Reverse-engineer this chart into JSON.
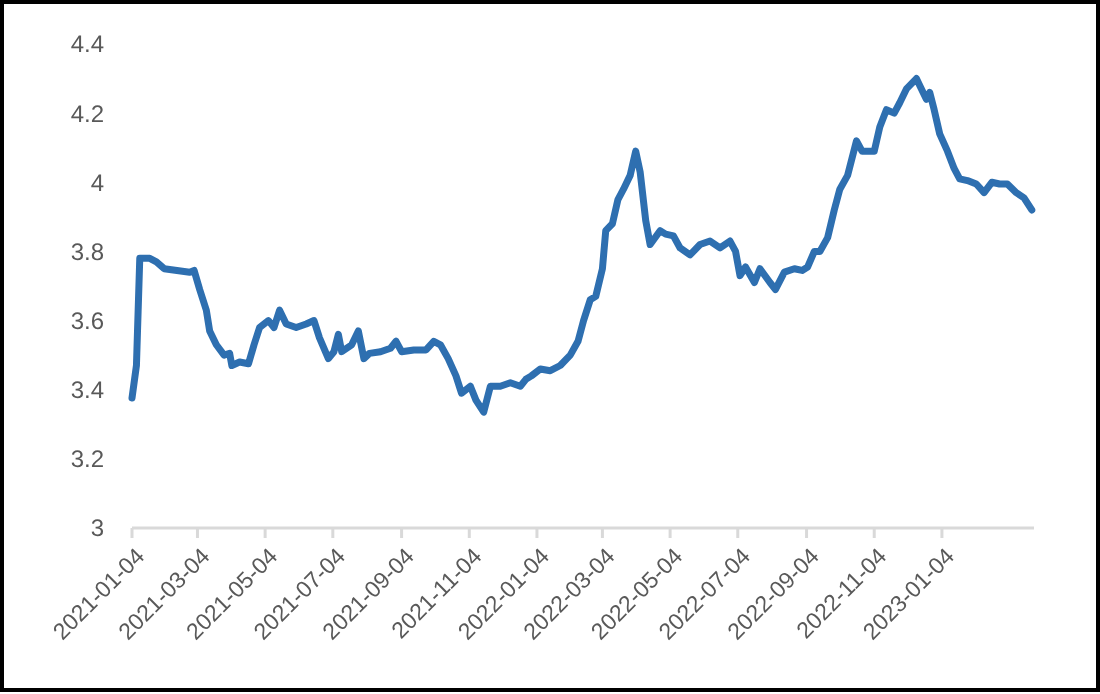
{
  "chart_data": {
    "type": "line",
    "x": [
      "2021-01-04",
      "2021-01-08",
      "2021-01-11",
      "2021-01-20",
      "2021-01-26",
      "2021-02-02",
      "2021-02-25",
      "2021-03-01",
      "2021-03-06",
      "2021-03-12",
      "2021-03-15",
      "2021-03-21",
      "2021-03-28",
      "2021-04-02",
      "2021-04-04",
      "2021-04-11",
      "2021-04-19",
      "2021-04-24",
      "2021-04-29",
      "2021-05-07",
      "2021-05-12",
      "2021-05-17",
      "2021-05-23",
      "2021-06-01",
      "2021-06-10",
      "2021-06-17",
      "2021-06-22",
      "2021-06-30",
      "2021-07-05",
      "2021-07-09",
      "2021-07-12",
      "2021-07-21",
      "2021-07-27",
      "2021-08-01",
      "2021-08-06",
      "2021-08-16",
      "2021-08-25",
      "2021-08-30",
      "2021-09-04",
      "2021-09-15",
      "2021-09-26",
      "2021-10-03",
      "2021-10-09",
      "2021-10-16",
      "2021-10-23",
      "2021-10-28",
      "2021-11-05",
      "2021-11-10",
      "2021-11-17",
      "2021-11-23",
      "2021-12-02",
      "2021-12-11",
      "2021-12-20",
      "2021-12-25",
      "2021-12-30",
      "2022-01-07",
      "2022-01-16",
      "2022-01-25",
      "2022-02-03",
      "2022-02-10",
      "2022-02-15",
      "2022-02-21",
      "2022-02-26",
      "2022-03-04",
      "2022-03-07",
      "2022-03-13",
      "2022-03-18",
      "2022-03-23",
      "2022-03-29",
      "2022-04-03",
      "2022-04-07",
      "2022-04-12",
      "2022-04-16",
      "2022-04-25",
      "2022-04-30",
      "2022-05-07",
      "2022-05-13",
      "2022-05-22",
      "2022-05-31",
      "2022-06-09",
      "2022-06-18",
      "2022-06-27",
      "2022-07-02",
      "2022-07-06",
      "2022-07-11",
      "2022-07-19",
      "2022-07-24",
      "2022-08-02",
      "2022-08-07",
      "2022-08-15",
      "2022-08-24",
      "2022-08-31",
      "2022-09-05",
      "2022-09-11",
      "2022-09-16",
      "2022-09-23",
      "2022-09-29",
      "2022-10-04",
      "2022-10-11",
      "2022-10-19",
      "2022-10-24",
      "2022-11-04",
      "2022-11-09",
      "2022-11-15",
      "2022-11-22",
      "2022-11-27",
      "2022-12-03",
      "2022-12-12",
      "2022-12-15",
      "2022-12-21",
      "2022-12-24",
      "2022-12-28",
      "2023-01-02",
      "2023-01-09",
      "2023-01-15",
      "2023-01-20",
      "2023-01-27",
      "2023-02-04",
      "2023-02-11",
      "2023-02-18",
      "2023-02-25",
      "2023-03-04",
      "2023-03-12",
      "2023-03-19",
      "2023-03-26"
    ],
    "series": [
      {
        "color": "#2e6fb0",
        "values": [
          3.376,
          3.47,
          3.78,
          3.78,
          3.77,
          3.75,
          3.74,
          3.745,
          3.69,
          3.63,
          3.57,
          3.53,
          3.5,
          3.505,
          3.47,
          3.48,
          3.475,
          3.53,
          3.58,
          3.6,
          3.58,
          3.63,
          3.59,
          3.58,
          3.59,
          3.6,
          3.55,
          3.49,
          3.51,
          3.56,
          3.51,
          3.53,
          3.57,
          3.49,
          3.505,
          3.51,
          3.52,
          3.54,
          3.51,
          3.515,
          3.515,
          3.54,
          3.53,
          3.49,
          3.44,
          3.39,
          3.41,
          3.37,
          3.335,
          3.41,
          3.41,
          3.42,
          3.41,
          3.43,
          3.44,
          3.46,
          3.455,
          3.47,
          3.5,
          3.54,
          3.6,
          3.66,
          3.67,
          3.75,
          3.86,
          3.88,
          3.95,
          3.98,
          4.02,
          4.09,
          4.03,
          3.89,
          3.82,
          3.86,
          3.85,
          3.845,
          3.81,
          3.79,
          3.82,
          3.83,
          3.81,
          3.83,
          3.8,
          3.73,
          3.755,
          3.71,
          3.75,
          3.71,
          3.69,
          3.74,
          3.75,
          3.745,
          3.755,
          3.8,
          3.8,
          3.84,
          3.92,
          3.98,
          4.02,
          4.12,
          4.09,
          4.09,
          4.16,
          4.21,
          4.2,
          4.23,
          4.27,
          4.3,
          4.28,
          4.24,
          4.26,
          4.21,
          4.14,
          4.09,
          4.04,
          4.01,
          4.005,
          3.995,
          3.97,
          4,
          3.995,
          3.995,
          3.97,
          3.955,
          3.92
        ]
      }
    ],
    "xlim": [
      "2021-01-04",
      "2023-03-28"
    ],
    "xticks": [
      "2021-01-04",
      "2021-03-04",
      "2021-05-04",
      "2021-07-04",
      "2021-09-04",
      "2021-11-04",
      "2022-01-04",
      "2022-03-04",
      "2022-05-04",
      "2022-07-04",
      "2022-09-04",
      "2022-11-04",
      "2023-01-04"
    ],
    "ylim": [
      3,
      4.4
    ],
    "yticks": [
      3,
      3.2,
      3.4,
      3.6,
      3.8,
      4,
      4.2,
      4.4
    ],
    "grid": false,
    "marker": "none",
    "line_style": "solid"
  }
}
